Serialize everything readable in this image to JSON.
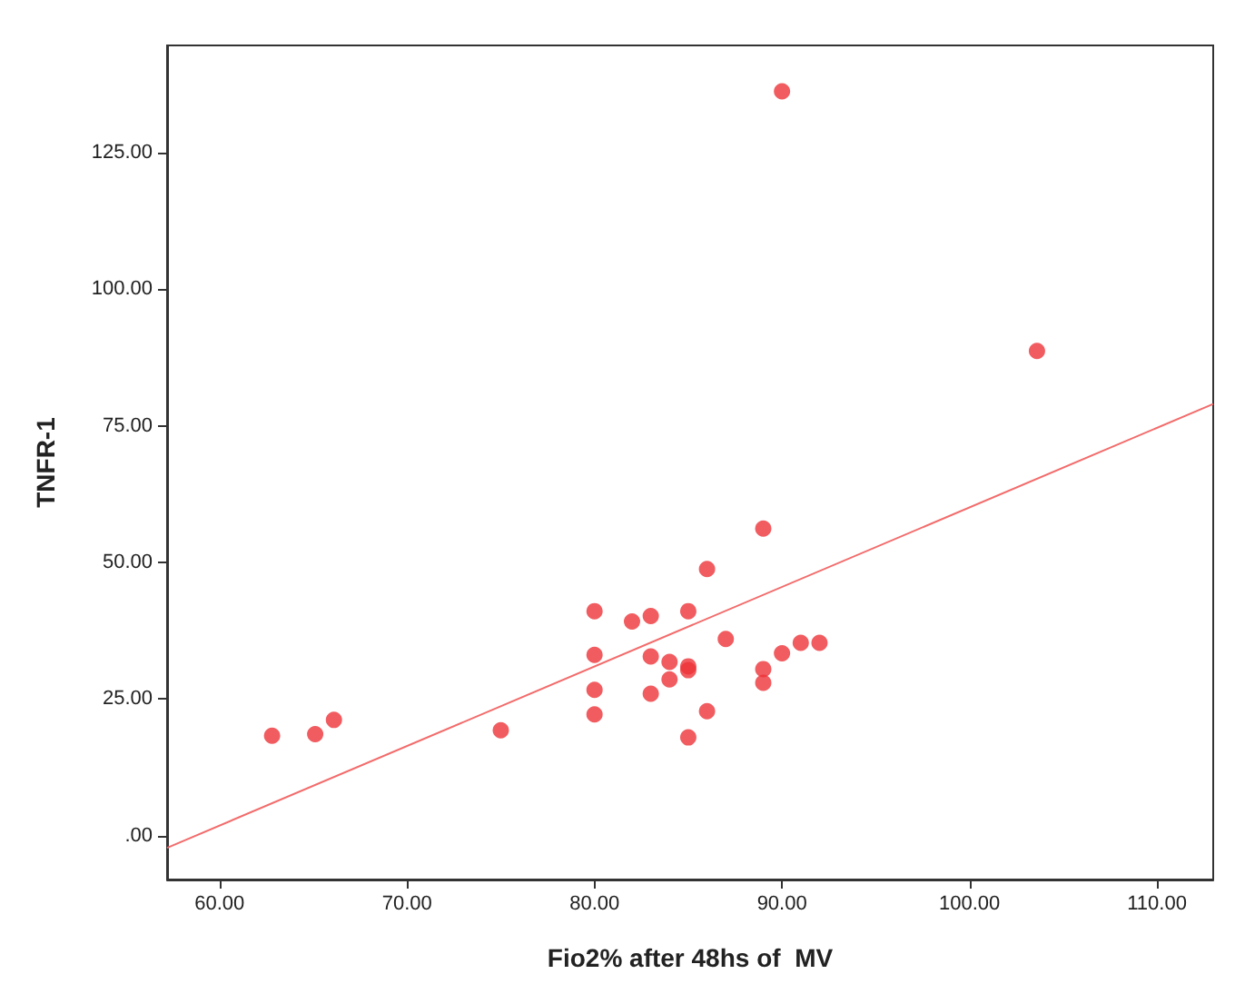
{
  "chart_data": {
    "type": "scatter",
    "xlabel": "Fio2% after 48hs of  MV",
    "ylabel": "TNFR-1",
    "xlim": [
      57.2,
      113
    ],
    "ylim": [
      -8,
      144.6
    ],
    "xticks": [
      {
        "value": 60,
        "label": "60.00"
      },
      {
        "value": 70,
        "label": "70.00"
      },
      {
        "value": 80,
        "label": "80.00"
      },
      {
        "value": 90,
        "label": "90.00"
      },
      {
        "value": 100,
        "label": "100.00"
      },
      {
        "value": 110,
        "label": "110.00"
      }
    ],
    "yticks": [
      {
        "value": 0,
        "label": ".00"
      },
      {
        "value": 25,
        "label": "25.00"
      },
      {
        "value": 50,
        "label": "50.00"
      },
      {
        "value": 75,
        "label": "75.00"
      },
      {
        "value": 100,
        "label": "100.00"
      },
      {
        "value": 125,
        "label": "125.00"
      }
    ],
    "grid": false,
    "marker": "circle",
    "series": [
      {
        "color": "#ee3338",
        "x": [
          62.8,
          65.1,
          66.1,
          75,
          80,
          80,
          80,
          80,
          82,
          83,
          83,
          83,
          84,
          84,
          85,
          85,
          85,
          85,
          86,
          86,
          87,
          89,
          89,
          89,
          90,
          91,
          92,
          90,
          103.6
        ],
        "values": [
          18.3,
          18.6,
          21.2,
          19.3,
          41.1,
          33.1,
          26.7,
          22.2,
          39.2,
          40.2,
          32.8,
          26,
          31.8,
          28.6,
          41.1,
          31,
          30.3,
          18,
          48.8,
          22.8,
          36,
          56.2,
          30.5,
          28,
          33.4,
          35.3,
          35.3,
          136.2,
          88.7
        ]
      },
      {
        "type": "line",
        "color": "#f36b6b",
        "line_style": "solid",
        "marker": "none",
        "x": [
          57.2,
          113
        ],
        "values": [
          -2.2,
          79
        ]
      }
    ]
  }
}
